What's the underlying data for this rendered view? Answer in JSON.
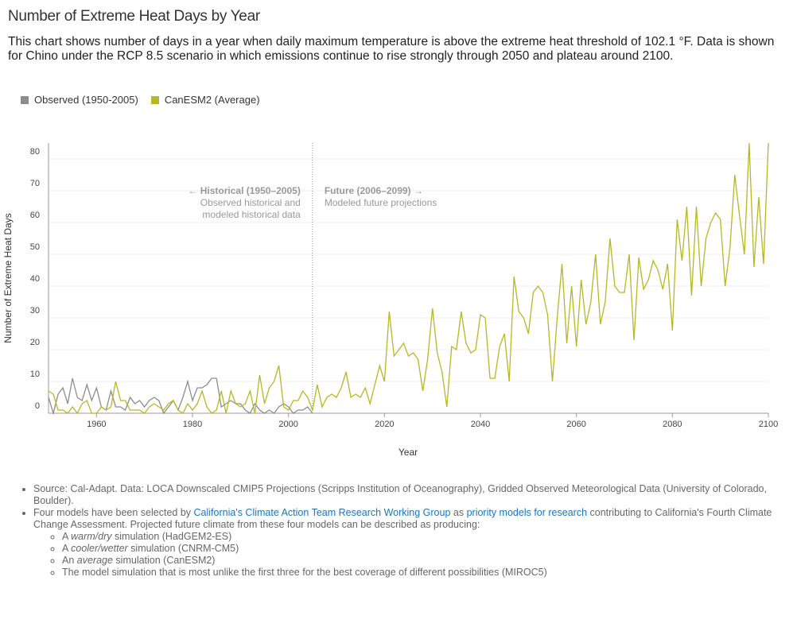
{
  "header": {
    "title": "Number of Extreme Heat Days by Year",
    "description": "This chart shows number of days in a year when daily maximum temperature is above the extreme heat threshold of 102.1 °F. Data is shown for Chino under the RCP 8.5 scenario in which emissions continue to rise strongly through 2050 and plateau around 2100."
  },
  "chart_data": {
    "type": "line",
    "x_label": "Year",
    "y_label": "Number of Extreme Heat Days",
    "legend": "top-left",
    "grid": true,
    "xlim": [
      1950,
      2100
    ],
    "xticks": [
      1960,
      1980,
      2000,
      2020,
      2040,
      2060,
      2080,
      2100
    ],
    "ylim": [
      0,
      85
    ],
    "yticks": [
      0,
      10,
      20,
      30,
      40,
      50,
      60,
      70,
      80
    ],
    "annotation": {
      "x": 2005,
      "left": [
        "← Historical (1950–2005)",
        "Observed historical and",
        "modeled historical data"
      ],
      "right": [
        "Future (2006–2099) →",
        "Modeled future projections"
      ]
    },
    "x": [
      1950,
      1951,
      1952,
      1953,
      1954,
      1955,
      1956,
      1957,
      1958,
      1959,
      1960,
      1961,
      1962,
      1963,
      1964,
      1965,
      1966,
      1967,
      1968,
      1969,
      1970,
      1971,
      1972,
      1973,
      1974,
      1975,
      1976,
      1977,
      1978,
      1979,
      1980,
      1981,
      1982,
      1983,
      1984,
      1985,
      1986,
      1987,
      1988,
      1989,
      1990,
      1991,
      1992,
      1993,
      1994,
      1995,
      1996,
      1997,
      1998,
      1999,
      2000,
      2001,
      2002,
      2003,
      2004,
      2005,
      2006,
      2007,
      2008,
      2009,
      2010,
      2011,
      2012,
      2013,
      2014,
      2015,
      2016,
      2017,
      2018,
      2019,
      2020,
      2021,
      2022,
      2023,
      2024,
      2025,
      2026,
      2027,
      2028,
      2029,
      2030,
      2031,
      2032,
      2033,
      2034,
      2035,
      2036,
      2037,
      2038,
      2039,
      2040,
      2041,
      2042,
      2043,
      2044,
      2045,
      2046,
      2047,
      2048,
      2049,
      2050,
      2051,
      2052,
      2053,
      2054,
      2055,
      2056,
      2057,
      2058,
      2059,
      2060,
      2061,
      2062,
      2063,
      2064,
      2065,
      2066,
      2067,
      2068,
      2069,
      2070,
      2071,
      2072,
      2073,
      2074,
      2075,
      2076,
      2077,
      2078,
      2079,
      2080,
      2081,
      2082,
      2083,
      2084,
      2085,
      2086,
      2087,
      2088,
      2089,
      2090,
      2091,
      2092,
      2093,
      2094,
      2095,
      2096,
      2097,
      2098,
      2099,
      2100
    ],
    "series": [
      {
        "name": "Observed (1950-2005)",
        "color": "#8c8c8c",
        "values": [
          5,
          0,
          6,
          8,
          3,
          11,
          5,
          4,
          9,
          4,
          8,
          2,
          1,
          7,
          2,
          2,
          1,
          5,
          3,
          4,
          2,
          4,
          5,
          4,
          0,
          2,
          4,
          1,
          5,
          10,
          4,
          8,
          8,
          9,
          11,
          11,
          2,
          3,
          4,
          3,
          3,
          1,
          0,
          3,
          1,
          0,
          1,
          0,
          2,
          3,
          2,
          0,
          1,
          1,
          2,
          0,
          null,
          null,
          null,
          null,
          null,
          null,
          null,
          null,
          null,
          null,
          null,
          null,
          null,
          null,
          null,
          null,
          null,
          null,
          null,
          null,
          null,
          null,
          null,
          null,
          null,
          null,
          null,
          null,
          null,
          null,
          null,
          null,
          null,
          null,
          null,
          null,
          null,
          null,
          null,
          null,
          null,
          null,
          null,
          null,
          null,
          null,
          null,
          null,
          null,
          null,
          null,
          null,
          null,
          null,
          null,
          null,
          null,
          null,
          null,
          null,
          null,
          null,
          null,
          null,
          null,
          null,
          null,
          null,
          null,
          null,
          null,
          null,
          null,
          null,
          null,
          null,
          null,
          null,
          null,
          null,
          null,
          null,
          null,
          null,
          null,
          null,
          null,
          null,
          null,
          null,
          null,
          null,
          null,
          null,
          null
        ]
      },
      {
        "name": "CanESM2 (Average)",
        "color": "#b5b824",
        "values": [
          7,
          6,
          1,
          1,
          0,
          2,
          0,
          3,
          4,
          0,
          0,
          2,
          1,
          2,
          10,
          4,
          4,
          1,
          1,
          1,
          0,
          2,
          3,
          2,
          1,
          3,
          4,
          1,
          0,
          3,
          1,
          3,
          7,
          2,
          0,
          1,
          7,
          0,
          7,
          3,
          2,
          3,
          7,
          0,
          12,
          3,
          8,
          10,
          15,
          2,
          1,
          4,
          4,
          7,
          5,
          1,
          9,
          2,
          5,
          6,
          5,
          8,
          13,
          5,
          6,
          5,
          8,
          3,
          9,
          15,
          10,
          32,
          18,
          20,
          22,
          18,
          19,
          17,
          7,
          17,
          33,
          19,
          13,
          2,
          21,
          20,
          32,
          22,
          19,
          20,
          31,
          30,
          11,
          11,
          21,
          25,
          10,
          43,
          32,
          30,
          25,
          38,
          40,
          38,
          31,
          10,
          30,
          47,
          22,
          40,
          21,
          42,
          28,
          35,
          50,
          28,
          35,
          55,
          40,
          38,
          38,
          50,
          23,
          49,
          39,
          42,
          48,
          45,
          39,
          47,
          26,
          61,
          48,
          65,
          37,
          65,
          40,
          55,
          60,
          63,
          61,
          40,
          52,
          75,
          62,
          50,
          85,
          46,
          68,
          47,
          85
        ]
      }
    ]
  },
  "notes": [
    {
      "parts": [
        "Source: Cal-Adapt. Data: LOCA Downscaled CMIP5 Projections (Scripps Institution of Oceanography), Gridded Observed Meteorological Data (University of Colorado, Boulder)."
      ]
    },
    {
      "parts": [
        "Four models have been selected by ",
        "California's Climate Action Team Research Working Group",
        " as ",
        "priority models for research",
        " contributing to California's Fourth Climate Change Assessment. Projected future climate from these four models can be described as producing:"
      ],
      "sub": [
        [
          "A ",
          "warm/dry",
          " simulation (HadGEM2-ES)"
        ],
        [
          "A ",
          "cooler/wetter",
          " simulation (CNRM-CM5)"
        ],
        [
          "An ",
          "average",
          " simulation (CanESM2)"
        ],
        [
          "The model simulation that is most unlike the first three for the best coverage of different possibilities (MIROC5)"
        ]
      ]
    }
  ]
}
